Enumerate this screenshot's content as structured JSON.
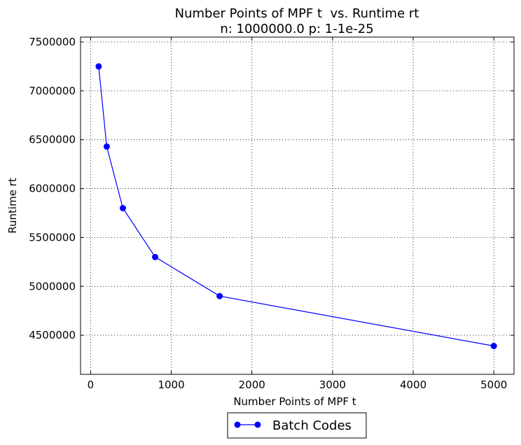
{
  "chart_data": {
    "type": "line",
    "title": "Number Points of MPF t  vs. Runtime rt",
    "subtitle": "n: 1000000.0 p: 1-1e-25",
    "xlabel": "Number Points of MPF t",
    "ylabel": "Runtime rt",
    "xlim": [
      -125,
      5250
    ],
    "ylim": [
      4100000,
      7550000
    ],
    "xticks": [
      0,
      1000,
      2000,
      3000,
      4000,
      5000
    ],
    "xtick_labels": [
      "0",
      "1000",
      "2000",
      "3000",
      "4000",
      "5000"
    ],
    "yticks": [
      4500000,
      5000000,
      5500000,
      6000000,
      6500000,
      7000000,
      7500000
    ],
    "ytick_labels": [
      "4500000",
      "5000000",
      "5500000",
      "6000000",
      "6500000",
      "7000000",
      "7500000"
    ],
    "grid": true,
    "legend_position": "below",
    "series": [
      {
        "name": "Batch Codes",
        "color": "#0000ff",
        "marker": "circle",
        "x": [
          100,
          200,
          400,
          800,
          1600,
          5000
        ],
        "y": [
          7250000,
          6430000,
          5800000,
          5300000,
          4900000,
          4390000
        ]
      }
    ]
  }
}
